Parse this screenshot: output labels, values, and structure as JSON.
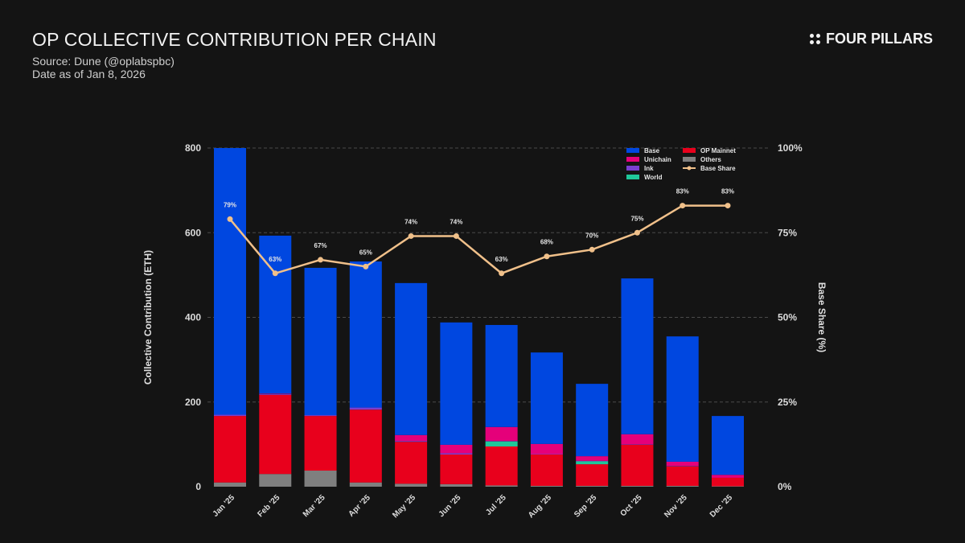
{
  "header": {
    "title": "OP COLLECTIVE CONTRIBUTION PER CHAIN",
    "source": "Source: Dune (@oplabspbc)",
    "date": "Date as of Jan 8, 2026",
    "brand": "FOUR PILLARS"
  },
  "chart_data": {
    "type": "bar",
    "stacked": true,
    "title": "OP COLLECTIVE CONTRIBUTION PER CHAIN",
    "xlabel": "",
    "ylabel": "Collective Contribution (ETH)",
    "y2label": "Base Share (%)",
    "ylim": [
      0,
      800
    ],
    "y2lim": [
      0,
      100
    ],
    "yticks": [
      "0",
      "200",
      "400",
      "600",
      "800"
    ],
    "y2ticks": [
      "0%",
      "25%",
      "50%",
      "75%",
      "100%"
    ],
    "grid": true,
    "legend_position": "top-right",
    "categories": [
      "Jan '25",
      "Feb '25",
      "Mar '25",
      "Apr '25",
      "May '25",
      "Jun '25",
      "Jul '25",
      "Aug '25",
      "Sep '25",
      "Oct '25",
      "Nov '25",
      "Dec '25"
    ],
    "series": [
      {
        "name": "Others",
        "color": "#7f7f7f",
        "values": [
          10,
          30,
          38,
          10,
          7,
          6,
          3,
          2,
          2,
          2,
          2,
          1
        ]
      },
      {
        "name": "OP Mainnet",
        "color": "#e8001c",
        "values": [
          157,
          187,
          129,
          172,
          99,
          70,
          92,
          74,
          51,
          97,
          46,
          20
        ]
      },
      {
        "name": "World",
        "color": "#1fc79a",
        "values": [
          0,
          0,
          0,
          0,
          0,
          0,
          12,
          0,
          7,
          0,
          0,
          0
        ]
      },
      {
        "name": "Ink",
        "color": "#7a3fd1",
        "values": [
          3,
          2,
          2,
          5,
          2,
          3,
          1,
          1,
          1,
          1,
          1,
          0
        ]
      },
      {
        "name": "Unichain",
        "color": "#e5007a",
        "values": [
          0,
          1,
          0,
          0,
          14,
          20,
          33,
          24,
          11,
          24,
          10,
          7
        ]
      },
      {
        "name": "Base",
        "color": "#0047e0",
        "values": [
          630,
          373,
          348,
          345,
          359,
          289,
          241,
          216,
          171,
          368,
          296,
          139
        ]
      }
    ],
    "line": {
      "name": "Base Share",
      "color": "#f0c08a",
      "values": [
        79,
        63,
        67,
        65,
        74,
        74,
        63,
        68,
        70,
        75,
        83,
        83
      ],
      "labels": [
        "79%",
        "63%",
        "67%",
        "65%",
        "74%",
        "74%",
        "63%",
        "68%",
        "70%",
        "75%",
        "83%",
        "83%"
      ]
    },
    "legend_order": [
      "Base",
      "OP Mainnet",
      "Unichain",
      "Others",
      "Ink",
      "Base Share",
      "World"
    ]
  }
}
